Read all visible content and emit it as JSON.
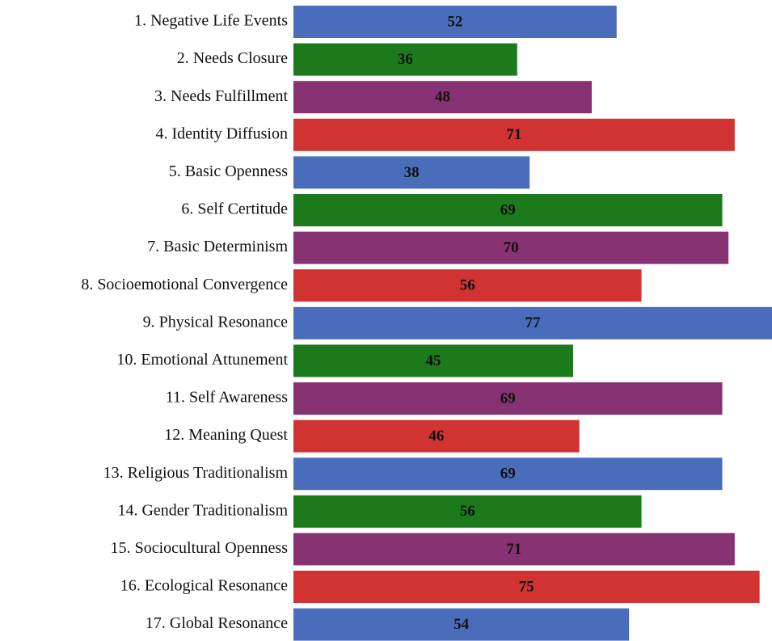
{
  "chart_data": {
    "type": "barh",
    "categories": [
      "1. Negative Life Events",
      "2. Needs Closure",
      "3. Needs Fulfillment",
      "4. Identity Diffusion",
      "5. Basic Openness",
      "6. Self Certitude",
      "7. Basic Determinism",
      "8. Socioemotional Convergence",
      "9. Physical Resonance",
      "10. Emotional Attunement",
      "11. Self Awareness",
      "12. Meaning Quest",
      "13. Religious Traditionalism",
      "14. Gender Traditionalism",
      "15. Sociocultural Openness",
      "16. Ecological Resonance",
      "17. Global Resonance"
    ],
    "values": [
      52,
      36,
      48,
      71,
      38,
      69,
      70,
      56,
      77,
      45,
      69,
      46,
      69,
      56,
      71,
      75,
      54
    ],
    "colors": [
      "#4a6dbb",
      "#1c7a1c",
      "#873272",
      "#d13232",
      "#4a6dbb",
      "#1c7a1c",
      "#873272",
      "#d13232",
      "#4a6dbb",
      "#1c7a1c",
      "#873272",
      "#d13232",
      "#4a6dbb",
      "#1c7a1c",
      "#873272",
      "#d13232",
      "#4a6dbb"
    ]
  }
}
